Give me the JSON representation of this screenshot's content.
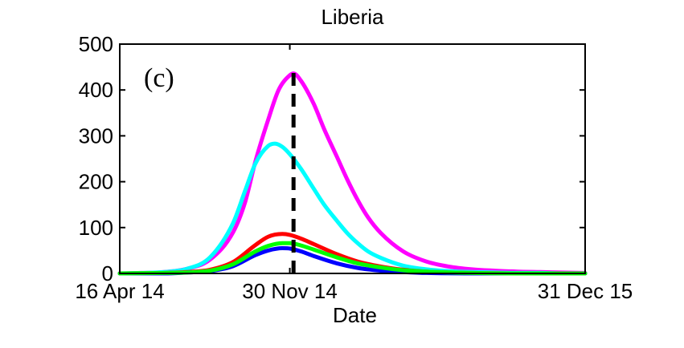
{
  "chart_data": {
    "type": "line",
    "title": "Liberia",
    "xlabel": "Date",
    "ylabel": "",
    "annotation": "(c)",
    "x_start_date": "2014-04-16",
    "x_end_date": "2015-12-31",
    "ylim": [
      0,
      500
    ],
    "yticks": [
      0,
      100,
      200,
      300,
      400,
      500
    ],
    "xticks": [
      {
        "date": "2014-04-16",
        "label": "16 Apr 14"
      },
      {
        "date": "2014-11-30",
        "label": "30 Nov 14"
      },
      {
        "date": "2015-12-31",
        "label": "31 Dec 15"
      }
    ],
    "vline_date": "2014-12-05",
    "grid": false,
    "series": [
      {
        "color": "#ff00ff",
        "x": [
          "2014-04-16",
          "2014-05-15",
          "2014-06-15",
          "2014-07-15",
          "2014-08-15",
          "2014-09-15",
          "2014-10-01",
          "2014-10-15",
          "2014-11-01",
          "2014-11-15",
          "2014-11-30",
          "2014-12-05",
          "2014-12-15",
          "2015-01-01",
          "2015-01-15",
          "2015-02-01",
          "2015-02-15",
          "2015-03-01",
          "2015-03-15",
          "2015-04-01",
          "2015-05-01",
          "2015-06-01",
          "2015-07-01",
          "2015-08-01",
          "2015-09-01",
          "2015-10-01",
          "2015-11-01",
          "2015-12-01",
          "2015-12-31"
        ],
        "values": [
          0,
          1,
          3,
          10,
          30,
          90,
          155,
          245,
          335,
          400,
          432,
          436,
          420,
          370,
          315,
          255,
          205,
          160,
          122,
          88,
          48,
          26,
          15,
          9,
          6,
          4,
          3,
          2,
          1
        ]
      },
      {
        "color": "#00ffff",
        "x": [
          "2014-04-16",
          "2014-05-15",
          "2014-06-15",
          "2014-07-15",
          "2014-08-15",
          "2014-09-15",
          "2014-10-01",
          "2014-10-15",
          "2014-11-01",
          "2014-11-10",
          "2014-11-20",
          "2014-11-30",
          "2014-12-15",
          "2015-01-01",
          "2015-01-15",
          "2015-02-01",
          "2015-02-15",
          "2015-03-01",
          "2015-03-15",
          "2015-04-01",
          "2015-05-01",
          "2015-06-01",
          "2015-07-01",
          "2015-08-01",
          "2015-09-01",
          "2015-10-01",
          "2015-11-01",
          "2015-12-01",
          "2015-12-31"
        ],
        "values": [
          0,
          1,
          3,
          10,
          35,
          110,
          180,
          240,
          278,
          283,
          276,
          260,
          228,
          185,
          150,
          115,
          88,
          66,
          48,
          34,
          17,
          9,
          5,
          3,
          2,
          1,
          1,
          0,
          0
        ]
      },
      {
        "color": "#ff0000",
        "x": [
          "2014-04-16",
          "2014-06-15",
          "2014-07-15",
          "2014-08-15",
          "2014-09-15",
          "2014-10-15",
          "2014-11-01",
          "2014-11-20",
          "2014-11-30",
          "2014-12-15",
          "2015-01-01",
          "2015-02-01",
          "2015-03-01",
          "2015-04-01",
          "2015-05-01",
          "2015-06-01",
          "2015-08-01",
          "2015-10-01",
          "2015-12-31"
        ],
        "values": [
          0,
          1,
          3,
          8,
          25,
          62,
          80,
          86,
          84,
          76,
          64,
          42,
          26,
          15,
          8,
          4,
          1,
          0,
          0
        ]
      },
      {
        "color": "#0000ff",
        "x": [
          "2014-04-16",
          "2014-06-15",
          "2014-07-15",
          "2014-08-15",
          "2014-09-15",
          "2014-10-15",
          "2014-11-01",
          "2014-11-20",
          "2014-12-01",
          "2014-12-15",
          "2015-01-01",
          "2015-02-01",
          "2015-03-01",
          "2015-04-01",
          "2015-05-01",
          "2015-06-01",
          "2015-08-01",
          "2015-10-01",
          "2015-12-31"
        ],
        "values": [
          0,
          0,
          2,
          5,
          16,
          40,
          50,
          55,
          54,
          48,
          38,
          22,
          12,
          6,
          3,
          1,
          0,
          0,
          0
        ]
      },
      {
        "color": "#00ff00",
        "x": [
          "2014-04-16",
          "2014-06-15",
          "2014-07-15",
          "2014-08-15",
          "2014-09-15",
          "2014-10-15",
          "2014-11-01",
          "2014-11-20",
          "2014-12-01",
          "2014-12-15",
          "2015-01-01",
          "2015-02-01",
          "2015-03-01",
          "2015-04-01",
          "2015-05-01",
          "2015-06-01",
          "2015-08-01",
          "2015-10-01",
          "2015-12-31"
        ],
        "values": [
          0,
          1,
          2,
          6,
          20,
          48,
          60,
          66,
          66,
          61,
          52,
          35,
          22,
          13,
          7,
          4,
          1,
          0,
          0
        ]
      }
    ]
  }
}
